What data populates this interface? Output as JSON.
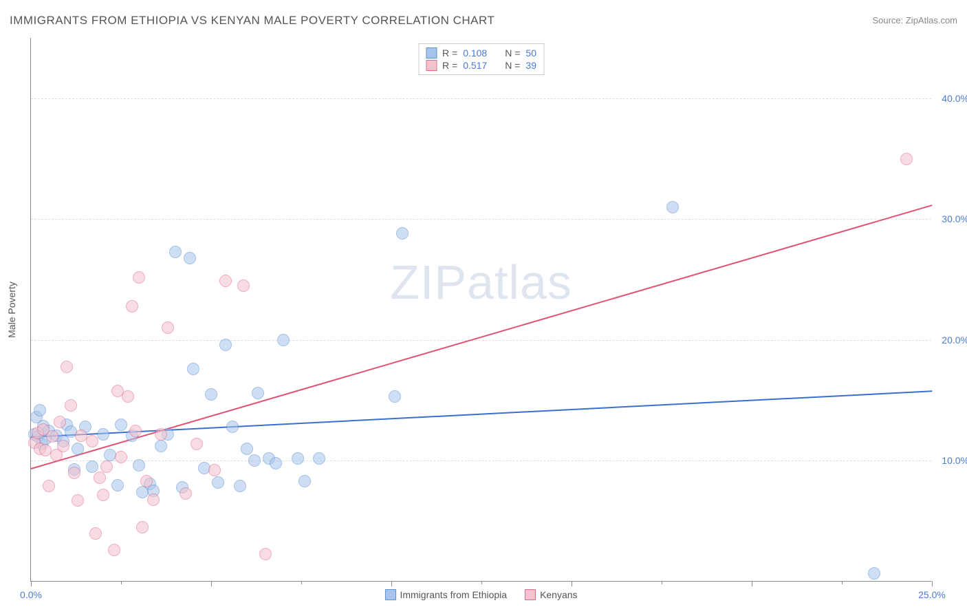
{
  "title": "IMMIGRANTS FROM ETHIOPIA VS KENYAN MALE POVERTY CORRELATION CHART",
  "source": "Source: ZipAtlas.com",
  "watermark": "ZIPatlas",
  "y_axis_title": "Male Poverty",
  "chart": {
    "type": "scatter",
    "xlim": [
      0,
      25
    ],
    "ylim": [
      0,
      45
    ],
    "x_ticks": [
      0,
      5,
      10,
      15,
      20,
      25
    ],
    "x_tick_labels": [
      "0.0%",
      "",
      "",
      "",
      "",
      "25.0%"
    ],
    "y_ticks": [
      10,
      20,
      30,
      40
    ],
    "y_tick_labels": [
      "10.0%",
      "20.0%",
      "30.0%",
      "40.0%"
    ],
    "x_minor_ticks": [
      2.5,
      7.5,
      12.5,
      17.5,
      22.5
    ],
    "background_color": "#ffffff",
    "grid_color": "#dddddd",
    "axis_color": "#888888",
    "point_radius": 9,
    "point_opacity": 0.55,
    "tick_label_color": "#4a7ad4"
  },
  "series": [
    {
      "name": "Immigrants from Ethiopia",
      "color_fill": "#a7c5ec",
      "color_stroke": "#5a8ed0",
      "r_label": "R =",
      "r_value": "0.108",
      "n_label": "N =",
      "n_value": "50",
      "trend": {
        "x1": 0,
        "y1": 12.0,
        "x2": 25,
        "y2": 15.8,
        "color": "#3a6fd0",
        "width": 2
      },
      "points": [
        [
          0.1,
          12.2
        ],
        [
          0.15,
          13.6
        ],
        [
          0.2,
          12.0
        ],
        [
          0.25,
          14.2
        ],
        [
          0.3,
          11.4
        ],
        [
          0.35,
          12.9
        ],
        [
          0.4,
          11.8
        ],
        [
          0.5,
          12.5
        ],
        [
          0.7,
          12.1
        ],
        [
          0.9,
          11.6
        ],
        [
          1.0,
          13.0
        ],
        [
          1.1,
          12.4
        ],
        [
          1.2,
          9.3
        ],
        [
          1.3,
          11.0
        ],
        [
          1.5,
          12.8
        ],
        [
          1.7,
          9.5
        ],
        [
          2.0,
          12.2
        ],
        [
          2.2,
          10.5
        ],
        [
          2.4,
          8.0
        ],
        [
          2.5,
          13.0
        ],
        [
          2.8,
          12.1
        ],
        [
          3.0,
          9.6
        ],
        [
          3.1,
          7.4
        ],
        [
          3.3,
          8.1
        ],
        [
          3.4,
          7.5
        ],
        [
          3.6,
          11.2
        ],
        [
          3.8,
          12.2
        ],
        [
          4.0,
          27.3
        ],
        [
          4.2,
          7.8
        ],
        [
          4.4,
          26.8
        ],
        [
          4.5,
          17.6
        ],
        [
          4.8,
          9.4
        ],
        [
          5.0,
          15.5
        ],
        [
          5.2,
          8.2
        ],
        [
          5.4,
          19.6
        ],
        [
          5.6,
          12.8
        ],
        [
          5.8,
          7.9
        ],
        [
          6.0,
          11.0
        ],
        [
          6.2,
          10.0
        ],
        [
          6.3,
          15.6
        ],
        [
          6.6,
          10.2
        ],
        [
          6.8,
          9.8
        ],
        [
          7.0,
          20.0
        ],
        [
          7.4,
          10.2
        ],
        [
          7.6,
          8.3
        ],
        [
          8.0,
          10.2
        ],
        [
          10.1,
          15.3
        ],
        [
          10.3,
          28.8
        ],
        [
          17.8,
          31.0
        ],
        [
          23.4,
          0.7
        ]
      ]
    },
    {
      "name": "Kenyans",
      "color_fill": "#f4c1cd",
      "color_stroke": "#e06a8a",
      "r_label": "R =",
      "r_value": "0.517",
      "n_label": "N =",
      "n_value": "39",
      "trend": {
        "x1": 0,
        "y1": 9.4,
        "x2": 25,
        "y2": 31.2,
        "color": "#e05274",
        "width": 2
      },
      "points": [
        [
          0.1,
          11.5
        ],
        [
          0.2,
          12.3
        ],
        [
          0.25,
          11.0
        ],
        [
          0.35,
          12.6
        ],
        [
          0.4,
          10.9
        ],
        [
          0.5,
          7.9
        ],
        [
          0.6,
          12.0
        ],
        [
          0.7,
          10.5
        ],
        [
          0.8,
          13.2
        ],
        [
          0.9,
          11.2
        ],
        [
          1.0,
          17.8
        ],
        [
          1.1,
          14.6
        ],
        [
          1.2,
          9.0
        ],
        [
          1.3,
          6.7
        ],
        [
          1.4,
          12.1
        ],
        [
          1.7,
          11.6
        ],
        [
          1.8,
          4.0
        ],
        [
          1.9,
          8.6
        ],
        [
          2.0,
          7.2
        ],
        [
          2.1,
          9.5
        ],
        [
          2.3,
          2.6
        ],
        [
          2.4,
          15.8
        ],
        [
          2.5,
          10.3
        ],
        [
          2.7,
          15.3
        ],
        [
          2.8,
          22.8
        ],
        [
          2.9,
          12.5
        ],
        [
          3.0,
          25.2
        ],
        [
          3.1,
          4.5
        ],
        [
          3.2,
          8.3
        ],
        [
          3.4,
          6.8
        ],
        [
          3.6,
          12.2
        ],
        [
          3.8,
          21.0
        ],
        [
          4.3,
          7.3
        ],
        [
          4.6,
          11.4
        ],
        [
          5.1,
          9.2
        ],
        [
          5.4,
          24.9
        ],
        [
          5.9,
          24.5
        ],
        [
          6.5,
          2.3
        ],
        [
          24.3,
          35.0
        ]
      ]
    }
  ],
  "legend_bottom": {
    "items": [
      {
        "label": "Immigrants from Ethiopia",
        "fill": "#a7c5ec",
        "stroke": "#5a8ed0"
      },
      {
        "label": "Kenyans",
        "fill": "#f4c1cd",
        "stroke": "#e06a8a"
      }
    ]
  }
}
